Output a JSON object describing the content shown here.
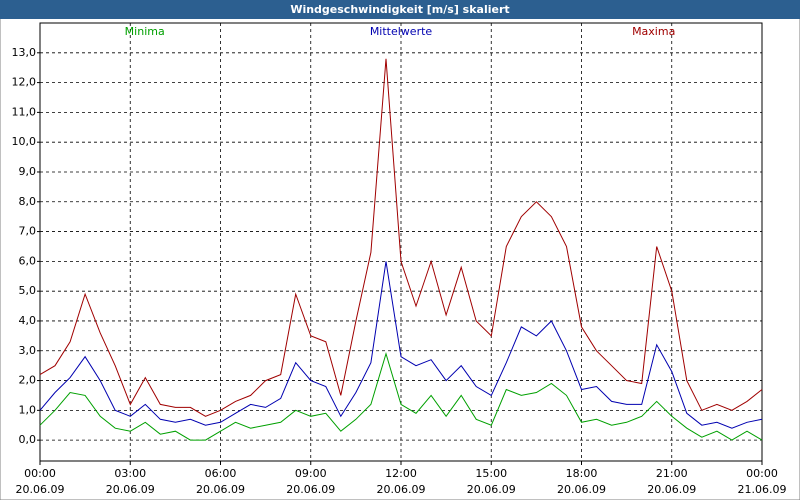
{
  "chart_data": {
    "type": "line",
    "title": "Windgeschwindigkeit [m/s] skaliert",
    "x": [
      0,
      0.5,
      1,
      1.5,
      2,
      2.5,
      3,
      3.5,
      4,
      4.5,
      5,
      5.5,
      6,
      6.5,
      7,
      7.5,
      8,
      8.5,
      9,
      9.5,
      10,
      10.5,
      11,
      11.5,
      12,
      12.5,
      13,
      13.5,
      14,
      14.5,
      15,
      15.5,
      16,
      16.5,
      17,
      17.5,
      18,
      18.5,
      19,
      19.5,
      20,
      20.5,
      21,
      21.5,
      22,
      22.5,
      23,
      23.5,
      24
    ],
    "series": [
      {
        "name": "Minima",
        "color": "#00a000",
        "values": [
          0.5,
          1.0,
          1.6,
          1.5,
          0.8,
          0.4,
          0.3,
          0.6,
          0.2,
          0.3,
          0.0,
          0.0,
          0.3,
          0.6,
          0.4,
          0.5,
          0.6,
          1.0,
          0.8,
          0.9,
          0.3,
          0.7,
          1.2,
          2.9,
          1.2,
          0.9,
          1.5,
          0.8,
          1.5,
          0.7,
          0.5,
          1.7,
          1.5,
          1.6,
          1.9,
          1.5,
          0.6,
          0.7,
          0.5,
          0.6,
          0.8,
          1.3,
          0.8,
          0.4,
          0.1,
          0.3,
          0.0,
          0.3,
          0.0
        ]
      },
      {
        "name": "Mittelwerte",
        "color": "#0000b0",
        "values": [
          1.0,
          1.6,
          2.1,
          2.8,
          2.0,
          1.0,
          0.8,
          1.2,
          0.7,
          0.6,
          0.7,
          0.5,
          0.6,
          0.9,
          1.2,
          1.1,
          1.4,
          2.6,
          2.0,
          1.8,
          0.8,
          1.6,
          2.6,
          6.0,
          2.8,
          2.5,
          2.7,
          2.0,
          2.5,
          1.8,
          1.5,
          2.6,
          3.8,
          3.5,
          4.0,
          3.0,
          1.7,
          1.8,
          1.3,
          1.2,
          1.2,
          3.2,
          2.3,
          0.9,
          0.5,
          0.6,
          0.4,
          0.6,
          0.7
        ]
      },
      {
        "name": "Maxima",
        "color": "#a00000",
        "values": [
          2.2,
          2.5,
          3.3,
          4.9,
          3.6,
          2.5,
          1.2,
          2.1,
          1.2,
          1.1,
          1.1,
          0.8,
          1.0,
          1.3,
          1.5,
          2.0,
          2.2,
          4.9,
          3.5,
          3.3,
          1.5,
          4.0,
          6.3,
          12.8,
          6.0,
          4.5,
          6.0,
          4.2,
          5.8,
          4.0,
          3.5,
          6.5,
          7.5,
          8.0,
          7.5,
          6.5,
          3.8,
          3.0,
          2.5,
          2.0,
          1.9,
          6.5,
          5.0,
          2.0,
          1.0,
          1.2,
          1.0,
          1.3,
          1.7
        ]
      }
    ],
    "xlim": [
      0,
      24
    ],
    "xticks": [
      {
        "value": 0,
        "label": "00:00",
        "date": "20.06.09"
      },
      {
        "value": 3,
        "label": "03:00",
        "date": "20.06.09"
      },
      {
        "value": 6,
        "label": "06:00",
        "date": "20.06.09"
      },
      {
        "value": 9,
        "label": "09:00",
        "date": "20.06.09"
      },
      {
        "value": 12,
        "label": "12:00",
        "date": "20.06.09"
      },
      {
        "value": 15,
        "label": "15:00",
        "date": "20.06.09"
      },
      {
        "value": 18,
        "label": "18:00",
        "date": "20.06.09"
      },
      {
        "value": 21,
        "label": "21:00",
        "date": "20.06.09"
      },
      {
        "value": 24,
        "label": "00:00",
        "date": "21.06.09"
      }
    ],
    "ylim": [
      -0.7,
      14.0
    ],
    "yticks": [
      {
        "value": 0,
        "label": "0,0"
      },
      {
        "value": 1,
        "label": "1,0"
      },
      {
        "value": 2,
        "label": "2,0"
      },
      {
        "value": 3,
        "label": "3,0"
      },
      {
        "value": 4,
        "label": "4,0"
      },
      {
        "value": 5,
        "label": "5,0"
      },
      {
        "value": 6,
        "label": "6,0"
      },
      {
        "value": 7,
        "label": "7,0"
      },
      {
        "value": 8,
        "label": "8,0"
      },
      {
        "value": 9,
        "label": "9,0"
      },
      {
        "value": 10,
        "label": "10,0"
      },
      {
        "value": 11,
        "label": "11,0"
      },
      {
        "value": 12,
        "label": "12,0"
      },
      {
        "value": 13,
        "label": "13,0"
      }
    ],
    "grid": true
  }
}
